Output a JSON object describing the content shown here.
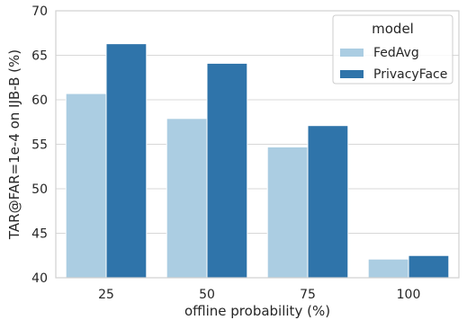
{
  "chart_data": {
    "type": "bar",
    "categories": [
      "25",
      "50",
      "75",
      "100"
    ],
    "series": [
      {
        "name": "FedAvg",
        "values": [
          60.7,
          57.9,
          54.7,
          42.1
        ],
        "color": "#abcde2"
      },
      {
        "name": "PrivacyFace",
        "values": [
          66.3,
          64.1,
          57.1,
          42.5
        ],
        "color": "#2f74aa"
      }
    ],
    "xlabel": "offline probability (%)",
    "ylabel": "TAR@FAR=1e-4 on IJB-B (%)",
    "ylim": [
      40,
      70
    ],
    "yticks": [
      "40",
      "45",
      "50",
      "55",
      "60",
      "65",
      "70"
    ],
    "grid": true,
    "legend": {
      "title": "model",
      "placement": "top-right"
    }
  }
}
